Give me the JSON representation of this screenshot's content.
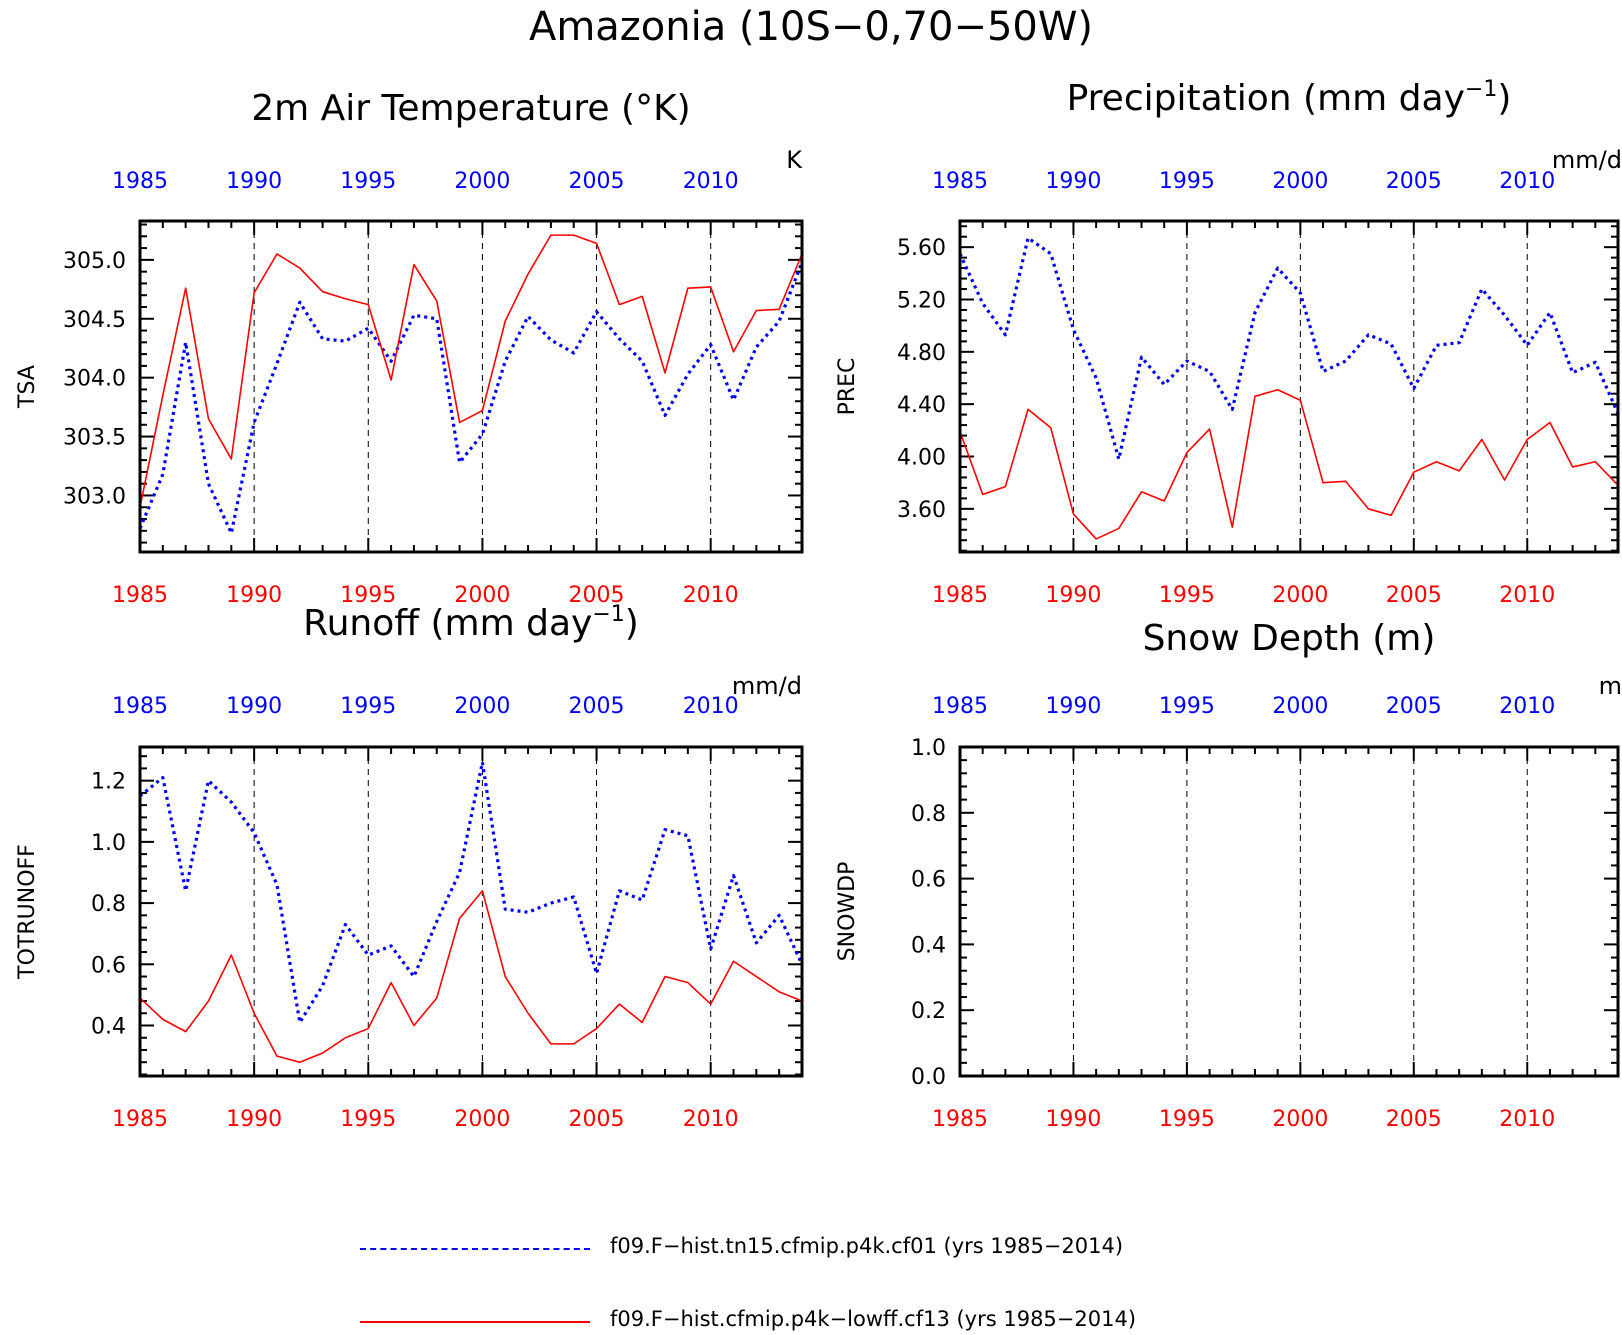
{
  "main_title": "Amazonia (10S−0,70−50W)",
  "colors": {
    "series1": "#0000ff",
    "series2": "#ff0000",
    "axis": "#000000"
  },
  "legend": [
    {
      "label": "f09.F−hist.tn15.cfmip.p4k.cf01 (yrs 1985−2014)",
      "color": "#0000ff",
      "style": "dashed"
    },
    {
      "label": "f09.F−hist.cfmip.p4k−lowff.cf13 (yrs 1985−2014)",
      "color": "#ff0000",
      "style": "solid"
    }
  ],
  "chart_data": [
    {
      "type": "line",
      "title": "2m Air Temperature (°K)",
      "unit_label": "K",
      "ylabel": "TSA",
      "xlim": [
        1985,
        2014
      ],
      "ylim": [
        302.52,
        305.33
      ],
      "yticks": [
        303.0,
        303.5,
        304.0,
        304.5,
        305.0
      ],
      "ytick_labels": [
        "303.0",
        "303.5",
        "304.0",
        "304.5",
        "305.0"
      ],
      "xticks": [
        1985,
        1990,
        1995,
        2000,
        2005,
        2010
      ],
      "grid": "vertical dashed at labeled years",
      "x": [
        1985,
        1986,
        1987,
        1988,
        1989,
        1990,
        1991,
        1992,
        1993,
        1994,
        1995,
        1996,
        1997,
        1998,
        1999,
        2000,
        2001,
        2002,
        2003,
        2004,
        2005,
        2006,
        2007,
        2008,
        2009,
        2010,
        2011,
        2012,
        2013,
        2014
      ],
      "series": [
        {
          "values": [
            302.72,
            303.18,
            304.3,
            303.1,
            302.68,
            303.62,
            304.12,
            304.64,
            304.33,
            304.31,
            304.42,
            304.14,
            304.53,
            304.5,
            303.28,
            303.52,
            304.14,
            304.52,
            304.32,
            304.21,
            304.56,
            304.33,
            304.14,
            303.68,
            304.03,
            304.28,
            303.81,
            304.26,
            304.48,
            304.98
          ]
        },
        {
          "values": [
            302.9,
            303.85,
            304.76,
            303.65,
            303.31,
            304.72,
            305.05,
            304.93,
            304.73,
            304.67,
            304.62,
            303.98,
            304.96,
            304.65,
            303.62,
            303.72,
            304.48,
            304.88,
            305.21,
            305.21,
            305.14,
            304.62,
            304.69,
            304.04,
            304.76,
            304.77,
            304.22,
            304.57,
            304.58,
            305.05
          ]
        }
      ]
    },
    {
      "type": "line",
      "title": "Precipitation (mm day",
      "title_sup": "−1",
      "title_end": ")",
      "unit_label": "mm/d",
      "ylabel": "PREC",
      "xlim": [
        1985,
        2014
      ],
      "ylim": [
        3.27,
        5.8
      ],
      "yticks": [
        3.6,
        4.0,
        4.4,
        4.8,
        5.2,
        5.6
      ],
      "ytick_labels": [
        "3.60",
        "4.00",
        "4.40",
        "4.80",
        "5.20",
        "5.60"
      ],
      "xticks": [
        1985,
        1990,
        1995,
        2000,
        2005,
        2010
      ],
      "grid": "vertical dashed at labeled years",
      "x": [
        1985,
        1986,
        1987,
        1988,
        1989,
        1990,
        1991,
        1992,
        1993,
        1994,
        1995,
        1996,
        1997,
        1998,
        1999,
        2000,
        2001,
        2002,
        2003,
        2004,
        2005,
        2006,
        2007,
        2008,
        2009,
        2010,
        2011,
        2012,
        2013,
        2014
      ],
      "series": [
        {
          "values": [
            5.55,
            5.17,
            4.93,
            5.67,
            5.55,
            4.97,
            4.6,
            3.98,
            4.76,
            4.55,
            4.73,
            4.65,
            4.36,
            5.1,
            5.44,
            5.25,
            4.65,
            4.73,
            4.93,
            4.86,
            4.52,
            4.85,
            4.87,
            5.28,
            5.08,
            4.85,
            5.1,
            4.64,
            4.72,
            4.33
          ]
        },
        {
          "values": [
            4.19,
            3.71,
            3.77,
            4.36,
            4.22,
            3.56,
            3.37,
            3.45,
            3.73,
            3.66,
            4.03,
            4.21,
            3.46,
            4.46,
            4.51,
            4.43,
            3.8,
            3.81,
            3.6,
            3.55,
            3.88,
            3.96,
            3.89,
            4.13,
            3.82,
            4.13,
            4.26,
            3.92,
            3.96,
            3.78
          ]
        }
      ]
    },
    {
      "type": "line",
      "title": "Runoff (mm day",
      "title_sup": "−1",
      "title_end": ")",
      "unit_label": "mm/d",
      "ylabel": "TOTRUNOFF",
      "xlim": [
        1985,
        2014
      ],
      "ylim": [
        0.235,
        1.31
      ],
      "yticks": [
        0.4,
        0.6,
        0.8,
        1.0,
        1.2
      ],
      "ytick_labels": [
        "0.4",
        "0.6",
        "0.8",
        "1.0",
        "1.2"
      ],
      "xticks": [
        1985,
        1990,
        1995,
        2000,
        2005,
        2010
      ],
      "grid": "vertical dashed at labeled years",
      "x": [
        1985,
        1986,
        1987,
        1988,
        1989,
        1990,
        1991,
        1992,
        1993,
        1994,
        1995,
        1996,
        1997,
        1998,
        1999,
        2000,
        2001,
        2002,
        2003,
        2004,
        2005,
        2006,
        2007,
        2008,
        2009,
        2010,
        2011,
        2012,
        2013,
        2014
      ],
      "series": [
        {
          "values": [
            1.15,
            1.21,
            0.84,
            1.2,
            1.13,
            1.03,
            0.86,
            0.41,
            0.53,
            0.73,
            0.63,
            0.66,
            0.56,
            0.74,
            0.9,
            1.26,
            0.78,
            0.77,
            0.8,
            0.82,
            0.57,
            0.84,
            0.81,
            1.04,
            1.02,
            0.65,
            0.89,
            0.67,
            0.76,
            0.6
          ]
        },
        {
          "values": [
            0.49,
            0.42,
            0.38,
            0.48,
            0.63,
            0.44,
            0.3,
            0.28,
            0.31,
            0.36,
            0.39,
            0.54,
            0.4,
            0.49,
            0.75,
            0.84,
            0.56,
            0.44,
            0.34,
            0.34,
            0.39,
            0.47,
            0.41,
            0.56,
            0.54,
            0.47,
            0.61,
            0.56,
            0.51,
            0.48
          ]
        }
      ]
    },
    {
      "type": "line",
      "title": "Snow Depth (m)",
      "unit_label": "m",
      "ylabel": "SNOWDP",
      "xlim": [
        1985,
        2014
      ],
      "ylim": [
        0.0,
        1.0
      ],
      "yticks": [
        0.0,
        0.2,
        0.4,
        0.6,
        0.8,
        1.0
      ],
      "ytick_labels": [
        "0.0",
        "0.2",
        "0.4",
        "0.6",
        "0.8",
        "1.0"
      ],
      "xticks": [
        1985,
        1990,
        1995,
        2000,
        2005,
        2010
      ],
      "grid": "vertical dashed at labeled years",
      "x": [],
      "series": []
    }
  ]
}
